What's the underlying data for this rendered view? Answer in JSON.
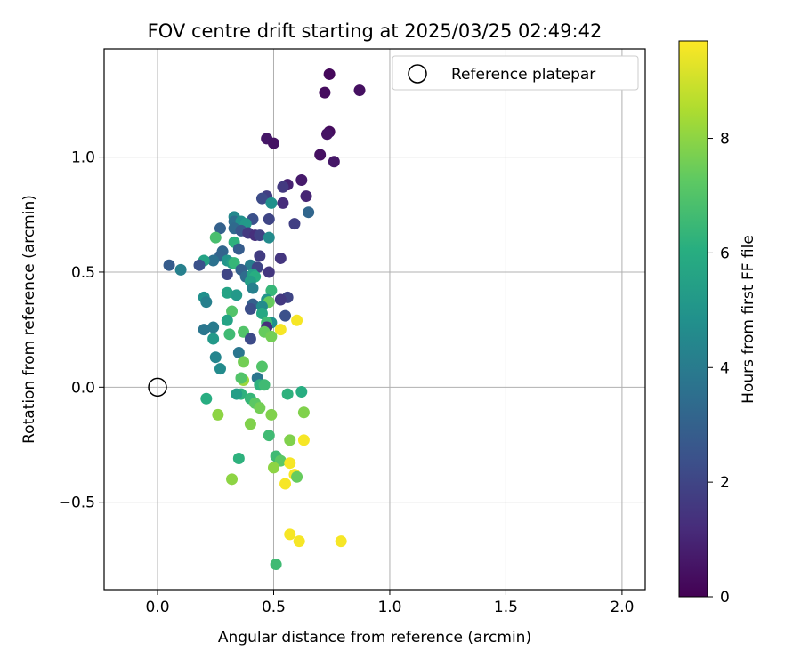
{
  "chart_data": {
    "type": "scatter",
    "title": "FOV centre drift starting at 2025/03/25 02:49:42",
    "xlabel": "Angular distance from reference (arcmin)",
    "ylabel": "Rotation from reference (arcmin)",
    "xlim": [
      -0.23,
      2.1
    ],
    "ylim": [
      -0.88,
      1.47
    ],
    "xticks": [
      "0.0",
      "0.5",
      "1.0",
      "1.5",
      "2.0"
    ],
    "xtick_values": [
      0,
      0.5,
      1.0,
      1.5,
      2.0
    ],
    "yticks": [
      "−0.5",
      "0.0",
      "0.5",
      "1.0"
    ],
    "ytick_values": [
      -0.5,
      0,
      0.5,
      1.0
    ],
    "grid": true,
    "legend": {
      "position": "top-right",
      "label": "Reference platepar"
    },
    "reference_point": {
      "x": 0.0,
      "y": 0.0
    },
    "colorbar": {
      "label": "Hours from first FF file",
      "range": [
        0,
        9.7
      ],
      "ticks": [
        "0",
        "2",
        "4",
        "6",
        "8"
      ],
      "tick_values": [
        0,
        2,
        4,
        6,
        8
      ],
      "colormap": "viridis"
    },
    "points": [
      {
        "x": 0.74,
        "y": 1.36,
        "h": 0.2
      },
      {
        "x": 0.72,
        "y": 1.28,
        "h": 0.3
      },
      {
        "x": 0.87,
        "y": 1.29,
        "h": 0.4
      },
      {
        "x": 0.74,
        "y": 1.11,
        "h": 0.3
      },
      {
        "x": 0.73,
        "y": 1.1,
        "h": 0.5
      },
      {
        "x": 0.47,
        "y": 1.08,
        "h": 0.6
      },
      {
        "x": 0.5,
        "y": 1.06,
        "h": 0.5
      },
      {
        "x": 0.7,
        "y": 1.01,
        "h": 0.4
      },
      {
        "x": 0.76,
        "y": 0.98,
        "h": 0.6
      },
      {
        "x": 0.62,
        "y": 0.9,
        "h": 0.7
      },
      {
        "x": 0.56,
        "y": 0.88,
        "h": 0.9
      },
      {
        "x": 0.54,
        "y": 0.87,
        "h": 1.6
      },
      {
        "x": 0.64,
        "y": 0.83,
        "h": 1.0
      },
      {
        "x": 0.47,
        "y": 0.83,
        "h": 1.8
      },
      {
        "x": 0.45,
        "y": 0.82,
        "h": 2.2
      },
      {
        "x": 0.54,
        "y": 0.8,
        "h": 1.2
      },
      {
        "x": 0.49,
        "y": 0.8,
        "h": 4.8
      },
      {
        "x": 0.65,
        "y": 0.76,
        "h": 3.2
      },
      {
        "x": 0.33,
        "y": 0.74,
        "h": 4.5
      },
      {
        "x": 0.48,
        "y": 0.73,
        "h": 2.0
      },
      {
        "x": 0.41,
        "y": 0.73,
        "h": 2.4
      },
      {
        "x": 0.33,
        "y": 0.72,
        "h": 3.5
      },
      {
        "x": 0.36,
        "y": 0.72,
        "h": 4.8
      },
      {
        "x": 0.38,
        "y": 0.71,
        "h": 5.2
      },
      {
        "x": 0.59,
        "y": 0.71,
        "h": 1.8
      },
      {
        "x": 0.27,
        "y": 0.69,
        "h": 3.0
      },
      {
        "x": 0.33,
        "y": 0.69,
        "h": 3.3
      },
      {
        "x": 0.36,
        "y": 0.68,
        "h": 2.6
      },
      {
        "x": 0.39,
        "y": 0.67,
        "h": 1.6
      },
      {
        "x": 0.42,
        "y": 0.66,
        "h": 1.3
      },
      {
        "x": 0.44,
        "y": 0.66,
        "h": 1.9
      },
      {
        "x": 0.25,
        "y": 0.65,
        "h": 6.8
      },
      {
        "x": 0.48,
        "y": 0.65,
        "h": 4.6
      },
      {
        "x": 0.33,
        "y": 0.63,
        "h": 6.2
      },
      {
        "x": 0.28,
        "y": 0.59,
        "h": 3.2
      },
      {
        "x": 0.35,
        "y": 0.6,
        "h": 2.8
      },
      {
        "x": 0.44,
        "y": 0.57,
        "h": 1.7
      },
      {
        "x": 0.27,
        "y": 0.57,
        "h": 3.1
      },
      {
        "x": 0.24,
        "y": 0.55,
        "h": 3.6
      },
      {
        "x": 0.2,
        "y": 0.55,
        "h": 5.6
      },
      {
        "x": 0.3,
        "y": 0.55,
        "h": 5.0
      },
      {
        "x": 0.32,
        "y": 0.54,
        "h": 5.3
      },
      {
        "x": 0.53,
        "y": 0.56,
        "h": 1.5
      },
      {
        "x": 0.05,
        "y": 0.53,
        "h": 2.8
      },
      {
        "x": 0.18,
        "y": 0.53,
        "h": 2.4
      },
      {
        "x": 0.33,
        "y": 0.54,
        "h": 6.4
      },
      {
        "x": 0.4,
        "y": 0.53,
        "h": 4.1
      },
      {
        "x": 0.43,
        "y": 0.52,
        "h": 2.0
      },
      {
        "x": 0.1,
        "y": 0.51,
        "h": 4.2
      },
      {
        "x": 0.36,
        "y": 0.51,
        "h": 3.0
      },
      {
        "x": 0.48,
        "y": 0.5,
        "h": 1.5
      },
      {
        "x": 0.3,
        "y": 0.49,
        "h": 2.0
      },
      {
        "x": 0.38,
        "y": 0.48,
        "h": 3.4
      },
      {
        "x": 0.41,
        "y": 0.49,
        "h": 5.5
      },
      {
        "x": 0.42,
        "y": 0.48,
        "h": 6.0
      },
      {
        "x": 0.4,
        "y": 0.46,
        "h": 5.4
      },
      {
        "x": 0.41,
        "y": 0.43,
        "h": 4.2
      },
      {
        "x": 0.49,
        "y": 0.42,
        "h": 6.4
      },
      {
        "x": 0.3,
        "y": 0.41,
        "h": 5.6
      },
      {
        "x": 0.34,
        "y": 0.4,
        "h": 5.2
      },
      {
        "x": 0.56,
        "y": 0.39,
        "h": 2.0
      },
      {
        "x": 0.53,
        "y": 0.38,
        "h": 1.6
      },
      {
        "x": 0.2,
        "y": 0.39,
        "h": 4.8
      },
      {
        "x": 0.21,
        "y": 0.37,
        "h": 4.2
      },
      {
        "x": 0.47,
        "y": 0.38,
        "h": 5.0
      },
      {
        "x": 0.48,
        "y": 0.37,
        "h": 7.4
      },
      {
        "x": 0.41,
        "y": 0.36,
        "h": 3.0
      },
      {
        "x": 0.4,
        "y": 0.34,
        "h": 2.3
      },
      {
        "x": 0.45,
        "y": 0.35,
        "h": 4.6
      },
      {
        "x": 0.32,
        "y": 0.33,
        "h": 7.0
      },
      {
        "x": 0.45,
        "y": 0.32,
        "h": 5.8
      },
      {
        "x": 0.55,
        "y": 0.31,
        "h": 2.4
      },
      {
        "x": 0.3,
        "y": 0.29,
        "h": 5.6
      },
      {
        "x": 0.6,
        "y": 0.29,
        "h": 9.6
      },
      {
        "x": 0.49,
        "y": 0.28,
        "h": 4.8
      },
      {
        "x": 0.47,
        "y": 0.28,
        "h": 6.6
      },
      {
        "x": 0.47,
        "y": 0.26,
        "h": 1.2
      },
      {
        "x": 0.24,
        "y": 0.26,
        "h": 4.0
      },
      {
        "x": 0.2,
        "y": 0.25,
        "h": 3.8
      },
      {
        "x": 0.53,
        "y": 0.25,
        "h": 9.6
      },
      {
        "x": 0.37,
        "y": 0.24,
        "h": 7.0
      },
      {
        "x": 0.46,
        "y": 0.24,
        "h": 7.4
      },
      {
        "x": 0.31,
        "y": 0.23,
        "h": 6.6
      },
      {
        "x": 0.49,
        "y": 0.22,
        "h": 7.6
      },
      {
        "x": 0.24,
        "y": 0.21,
        "h": 5.2
      },
      {
        "x": 0.4,
        "y": 0.21,
        "h": 2.2
      },
      {
        "x": 0.35,
        "y": 0.15,
        "h": 3.8
      },
      {
        "x": 0.25,
        "y": 0.13,
        "h": 4.4
      },
      {
        "x": 0.37,
        "y": 0.11,
        "h": 7.6
      },
      {
        "x": 0.45,
        "y": 0.09,
        "h": 7.0
      },
      {
        "x": 0.27,
        "y": 0.08,
        "h": 4.6
      },
      {
        "x": 0.43,
        "y": 0.04,
        "h": 3.8
      },
      {
        "x": 0.37,
        "y": 0.03,
        "h": 8.2
      },
      {
        "x": 0.36,
        "y": 0.04,
        "h": 7.0
      },
      {
        "x": 0.44,
        "y": 0.01,
        "h": 6.2
      },
      {
        "x": 0.46,
        "y": 0.01,
        "h": 6.6
      },
      {
        "x": 0.36,
        "y": -0.03,
        "h": 6.2
      },
      {
        "x": 0.34,
        "y": -0.03,
        "h": 5.4
      },
      {
        "x": 0.56,
        "y": -0.03,
        "h": 6.2
      },
      {
        "x": 0.62,
        "y": -0.02,
        "h": 6.0
      },
      {
        "x": 0.21,
        "y": -0.05,
        "h": 6.0
      },
      {
        "x": 0.4,
        "y": -0.05,
        "h": 6.4
      },
      {
        "x": 0.42,
        "y": -0.07,
        "h": 7.2
      },
      {
        "x": 0.44,
        "y": -0.09,
        "h": 7.6
      },
      {
        "x": 0.63,
        "y": -0.11,
        "h": 7.8
      },
      {
        "x": 0.26,
        "y": -0.12,
        "h": 8.0
      },
      {
        "x": 0.49,
        "y": -0.12,
        "h": 7.8
      },
      {
        "x": 0.4,
        "y": -0.16,
        "h": 7.8
      },
      {
        "x": 0.48,
        "y": -0.21,
        "h": 6.6
      },
      {
        "x": 0.57,
        "y": -0.23,
        "h": 7.8
      },
      {
        "x": 0.63,
        "y": -0.23,
        "h": 9.6
      },
      {
        "x": 0.51,
        "y": -0.3,
        "h": 6.6
      },
      {
        "x": 0.35,
        "y": -0.31,
        "h": 6.2
      },
      {
        "x": 0.53,
        "y": -0.32,
        "h": 7.2
      },
      {
        "x": 0.57,
        "y": -0.33,
        "h": 9.6
      },
      {
        "x": 0.5,
        "y": -0.35,
        "h": 8.0
      },
      {
        "x": 0.59,
        "y": -0.38,
        "h": 9.6
      },
      {
        "x": 0.6,
        "y": -0.39,
        "h": 7.4
      },
      {
        "x": 0.32,
        "y": -0.4,
        "h": 8.0
      },
      {
        "x": 0.55,
        "y": -0.42,
        "h": 9.6
      },
      {
        "x": 0.57,
        "y": -0.64,
        "h": 9.6
      },
      {
        "x": 0.61,
        "y": -0.67,
        "h": 9.6
      },
      {
        "x": 0.79,
        "y": -0.67,
        "h": 9.6
      },
      {
        "x": 0.51,
        "y": -0.77,
        "h": 6.6
      }
    ]
  }
}
